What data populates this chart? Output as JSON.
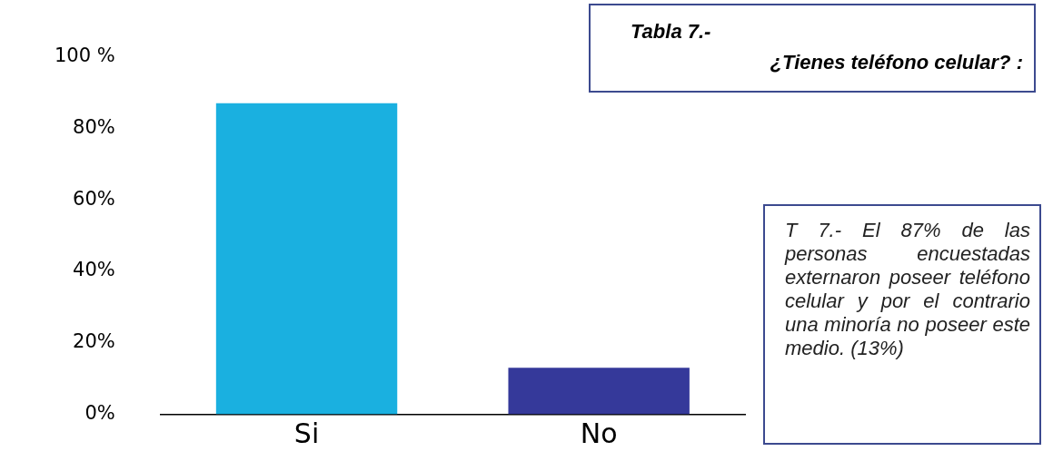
{
  "chart_data": {
    "type": "bar",
    "title": "Tabla 7.-",
    "subtitle": "¿Tienes teléfono celular? :",
    "categories": [
      "Si",
      "No"
    ],
    "values": [
      87,
      13
    ],
    "colors": [
      "#1ab0e0",
      "#35399a"
    ],
    "ylim": [
      0,
      100
    ],
    "yticks": [
      {
        "value": 0,
        "label": "0%"
      },
      {
        "value": 20,
        "label": "20%"
      },
      {
        "value": 40,
        "label": "40%"
      },
      {
        "value": 60,
        "label": "60%"
      },
      {
        "value": 80,
        "label": "80%"
      },
      {
        "value": 100,
        "label": "100 %"
      }
    ],
    "grid": false,
    "legend": false,
    "annotations": [
      "T 7.- El 87% de las personas encuestadas externaron poseer teléfono celular y por el contrario una minoría no poseer este medio. (13%)"
    ]
  }
}
